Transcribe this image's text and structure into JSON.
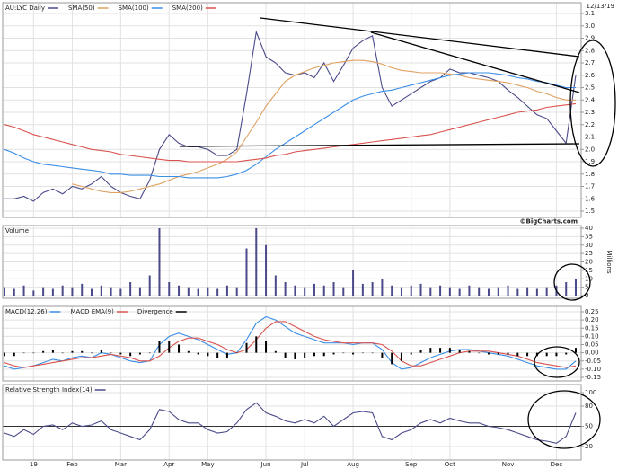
{
  "chart_data": [
    {
      "type": "line",
      "date": "12/13/19",
      "source": "©BigCharts.com",
      "grid": true,
      "categories": [
        null,
        null,
        null,
        "19",
        null,
        null,
        null,
        "Feb",
        null,
        null,
        null,
        null,
        "Mar",
        null,
        null,
        null,
        null,
        "Apr",
        null,
        null,
        null,
        "May",
        null,
        null,
        null,
        null,
        null,
        "Jun",
        null,
        null,
        null,
        "Jul",
        null,
        null,
        null,
        null,
        "Aug",
        null,
        null,
        null,
        null,
        null,
        "Sep",
        null,
        null,
        null,
        "Oct",
        null,
        null,
        null,
        null,
        null,
        "Nov",
        null,
        null,
        null,
        null,
        "Dec",
        null,
        null
      ],
      "ylim": [
        1.5,
        3.1
      ],
      "yticks": [
        1.5,
        1.6,
        1.7,
        1.8,
        1.9,
        {
          "value": 2,
          "label": "2.0"
        },
        2.1,
        2.2,
        2.3,
        2.4,
        2.5,
        2.6,
        2.7,
        2.8,
        2.9,
        {
          "value": 3,
          "label": "3.0"
        },
        3.1
      ],
      "series": [
        {
          "name": "AU:LYC Daily",
          "color": "#4a4a8a",
          "values": [
            1.6,
            1.6,
            1.62,
            1.58,
            1.65,
            1.68,
            1.64,
            1.7,
            1.68,
            1.72,
            1.78,
            1.7,
            1.65,
            1.62,
            1.6,
            1.75,
            2.0,
            2.12,
            2.05,
            2.02,
            2.02,
            2.0,
            1.95,
            1.95,
            2.0,
            2.45,
            2.95,
            2.75,
            2.7,
            2.62,
            2.6,
            2.62,
            2.58,
            2.7,
            2.55,
            2.68,
            2.82,
            2.88,
            2.92,
            2.5,
            2.35,
            2.4,
            2.45,
            2.5,
            2.55,
            2.58,
            2.65,
            2.62,
            2.62,
            2.6,
            2.58,
            2.55,
            2.48,
            2.42,
            2.35,
            2.28,
            2.25,
            2.15,
            2.05,
            2.6
          ]
        },
        {
          "name": "SMA(50)",
          "color": "#e0a060",
          "values": [
            null,
            null,
            null,
            null,
            null,
            null,
            null,
            1.72,
            1.7,
            1.68,
            1.66,
            1.65,
            1.65,
            1.66,
            1.68,
            1.7,
            1.72,
            1.75,
            1.78,
            1.8,
            1.82,
            1.85,
            1.88,
            1.92,
            1.98,
            2.1,
            2.22,
            2.35,
            2.45,
            2.55,
            2.6,
            2.63,
            2.66,
            2.68,
            2.7,
            2.71,
            2.72,
            2.72,
            2.71,
            2.69,
            2.66,
            2.64,
            2.63,
            2.62,
            2.62,
            2.62,
            2.61,
            2.6,
            2.58,
            2.57,
            2.56,
            2.55,
            2.54,
            2.52,
            2.5,
            2.47,
            2.45,
            2.42,
            2.4,
            2.4
          ]
        },
        {
          "name": "SMA(100)",
          "color": "#3a8ee6",
          "values": [
            2.0,
            1.97,
            1.93,
            1.9,
            1.88,
            1.87,
            1.86,
            1.85,
            1.84,
            1.83,
            1.82,
            1.8,
            1.8,
            1.79,
            1.79,
            1.79,
            1.78,
            1.78,
            1.78,
            1.77,
            1.77,
            1.77,
            1.77,
            1.78,
            1.8,
            1.83,
            1.88,
            1.94,
            2.0,
            2.05,
            2.1,
            2.15,
            2.2,
            2.25,
            2.3,
            2.35,
            2.4,
            2.43,
            2.45,
            2.47,
            2.48,
            2.5,
            2.52,
            2.54,
            2.56,
            2.58,
            2.6,
            2.61,
            2.62,
            2.62,
            2.62,
            2.61,
            2.6,
            2.58,
            2.57,
            2.55,
            2.54,
            2.52,
            2.5,
            2.5
          ]
        },
        {
          "name": "SMA(200)",
          "color": "#d9534f",
          "values": [
            2.2,
            2.18,
            2.15,
            2.12,
            2.1,
            2.08,
            2.06,
            2.04,
            2.02,
            2.0,
            1.99,
            1.98,
            1.96,
            1.95,
            1.94,
            1.93,
            1.92,
            1.91,
            1.91,
            1.9,
            1.9,
            1.9,
            1.9,
            1.9,
            1.9,
            1.91,
            1.92,
            1.93,
            1.95,
            1.96,
            1.98,
            1.99,
            2.0,
            2.01,
            2.02,
            2.03,
            2.04,
            2.05,
            2.06,
            2.07,
            2.08,
            2.09,
            2.1,
            2.11,
            2.12,
            2.14,
            2.16,
            2.18,
            2.2,
            2.22,
            2.24,
            2.26,
            2.28,
            2.3,
            2.31,
            2.32,
            2.34,
            2.35,
            2.36,
            2.37
          ]
        }
      ]
    },
    {
      "type": "bar",
      "title": "Volume",
      "y_label": "Millions",
      "color": "#4a4a8a",
      "grid": true,
      "ylim": [
        0,
        40
      ],
      "yticks": [
        0,
        5,
        10,
        15,
        20,
        25,
        30,
        35,
        40
      ],
      "values": [
        5,
        4,
        6,
        3,
        5,
        4,
        6,
        5,
        7,
        4,
        6,
        5,
        4,
        8,
        5,
        12,
        40,
        8,
        6,
        5,
        4,
        5,
        4,
        6,
        5,
        28,
        40,
        30,
        12,
        8,
        6,
        5,
        7,
        6,
        8,
        5,
        15,
        7,
        8,
        10,
        6,
        5,
        6,
        7,
        5,
        6,
        5,
        4,
        6,
        5,
        4,
        5,
        6,
        4,
        5,
        4,
        5,
        6,
        8,
        10
      ]
    },
    {
      "type": "line",
      "grid": true,
      "ylim": [
        -0.15,
        0.25
      ],
      "yticks": [
        0.25,
        {
          "value": 0.2,
          "label": "0.20"
        },
        0.15,
        {
          "value": 0.1,
          "label": "0.10"
        },
        0.05,
        {
          "value": 0,
          "label": "0.00"
        },
        -0.05,
        {
          "value": -0.1,
          "label": "-0.10"
        },
        -0.15
      ],
      "series": [
        {
          "name": "MACD(12,26)",
          "color": "#3a8ee6",
          "values": [
            -0.08,
            -0.1,
            -0.09,
            -0.08,
            -0.06,
            -0.04,
            -0.05,
            -0.03,
            -0.02,
            -0.03,
            0.0,
            -0.01,
            -0.03,
            -0.05,
            -0.06,
            -0.05,
            0.05,
            0.1,
            0.12,
            0.1,
            0.08,
            0.05,
            0.02,
            -0.01,
            0.0,
            0.08,
            0.18,
            0.22,
            0.2,
            0.16,
            0.12,
            0.1,
            0.08,
            0.06,
            0.06,
            0.06,
            0.05,
            0.06,
            0.06,
            0.02,
            -0.06,
            -0.1,
            -0.09,
            -0.06,
            -0.03,
            -0.01,
            0.01,
            0.02,
            0.02,
            0.01,
            0.0,
            -0.01,
            -0.02,
            -0.04,
            -0.06,
            -0.08,
            -0.09,
            -0.1,
            -0.1,
            -0.05
          ]
        },
        {
          "name": "MACD EMA(9)",
          "color": "#d9534f",
          "values": [
            -0.06,
            -0.08,
            -0.09,
            -0.08,
            -0.07,
            -0.06,
            -0.05,
            -0.04,
            -0.03,
            -0.03,
            -0.02,
            -0.01,
            -0.02,
            -0.03,
            -0.05,
            -0.05,
            -0.02,
            0.03,
            0.07,
            0.09,
            0.09,
            0.07,
            0.05,
            0.02,
            0.0,
            0.02,
            0.08,
            0.15,
            0.19,
            0.19,
            0.16,
            0.13,
            0.1,
            0.08,
            0.07,
            0.06,
            0.06,
            0.06,
            0.06,
            0.05,
            0.01,
            -0.05,
            -0.08,
            -0.08,
            -0.06,
            -0.04,
            -0.02,
            0.0,
            0.01,
            0.01,
            0.01,
            0.0,
            -0.01,
            -0.02,
            -0.04,
            -0.06,
            -0.07,
            -0.08,
            -0.09,
            -0.08
          ]
        },
        {
          "name": "Divergence",
          "color": "#000000",
          "style": "bar",
          "values": [
            -0.02,
            -0.02,
            0,
            0,
            0.01,
            0.02,
            0,
            0.01,
            0.01,
            0,
            0.02,
            0,
            -0.01,
            -0.02,
            -0.01,
            0,
            0.07,
            0.07,
            0.05,
            0.01,
            -0.01,
            -0.02,
            -0.03,
            -0.03,
            0,
            0.06,
            0.1,
            0.07,
            0.01,
            -0.03,
            -0.04,
            -0.03,
            -0.02,
            -0.02,
            -0.01,
            0,
            -0.01,
            0,
            0,
            -0.03,
            -0.07,
            -0.05,
            -0.01,
            0.02,
            0.03,
            0.03,
            0.03,
            0.02,
            0.01,
            0,
            -0.01,
            -0.01,
            -0.01,
            -0.02,
            -0.02,
            -0.02,
            -0.02,
            -0.02,
            -0.01,
            0.03
          ]
        }
      ]
    },
    {
      "type": "line",
      "grid": true,
      "ylim": [
        0,
        100
      ],
      "yticks": [
        20,
        50,
        80,
        100
      ],
      "ref_line": 50,
      "series": [
        {
          "name": "Relative Strength Index(14)",
          "color": "#4a4a8a",
          "values": [
            40,
            35,
            45,
            38,
            50,
            52,
            45,
            55,
            50,
            52,
            58,
            45,
            40,
            35,
            30,
            45,
            75,
            72,
            60,
            55,
            55,
            45,
            40,
            42,
            55,
            75,
            85,
            70,
            65,
            58,
            55,
            60,
            55,
            65,
            50,
            60,
            70,
            72,
            70,
            35,
            30,
            40,
            45,
            55,
            60,
            55,
            62,
            58,
            55,
            55,
            50,
            48,
            45,
            40,
            35,
            30,
            28,
            25,
            35,
            70
          ]
        }
      ]
    }
  ]
}
